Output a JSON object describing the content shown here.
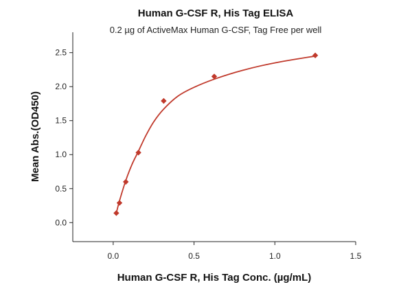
{
  "chart_data": {
    "type": "scatter",
    "title": "Human G-CSF R, His Tag ELISA",
    "subtitle": "0.2 µg of ActiveMax Human G-CSF, Tag Free per well",
    "xlabel": "Human G-CSF R, His Tag Conc. (µg/mL)",
    "ylabel": "Mean Abs.(OD450)",
    "xlim": [
      -0.25,
      1.5
    ],
    "ylim": [
      -0.28,
      2.8
    ],
    "x_ticks": [
      0.0,
      0.5,
      1.0,
      1.5
    ],
    "x_tick_labels": [
      "0.0",
      "0.5",
      "1.0",
      "1.5"
    ],
    "y_ticks": [
      0.0,
      0.5,
      1.0,
      1.5,
      2.0,
      2.5
    ],
    "y_tick_labels": [
      "0.0",
      "0.5",
      "1.0",
      "1.5",
      "2.0",
      "2.5"
    ],
    "grid": false,
    "series": [
      {
        "color": "#c0392b",
        "marker": "diamond",
        "x": [
          0.0195,
          0.039,
          0.078,
          0.156,
          0.3125,
          0.625,
          1.25
        ],
        "y": [
          0.14,
          0.29,
          0.6,
          1.03,
          1.79,
          2.15,
          2.46
        ]
      }
    ],
    "fit": {
      "color": "#c0392b",
      "x": [
        0.0195,
        0.039,
        0.078,
        0.117,
        0.156,
        0.2,
        0.25,
        0.3125,
        0.4,
        0.5,
        0.625,
        0.8,
        1.0,
        1.25
      ],
      "y": [
        0.14,
        0.32,
        0.62,
        0.86,
        1.05,
        1.27,
        1.48,
        1.67,
        1.86,
        1.99,
        2.11,
        2.24,
        2.35,
        2.45
      ]
    }
  }
}
